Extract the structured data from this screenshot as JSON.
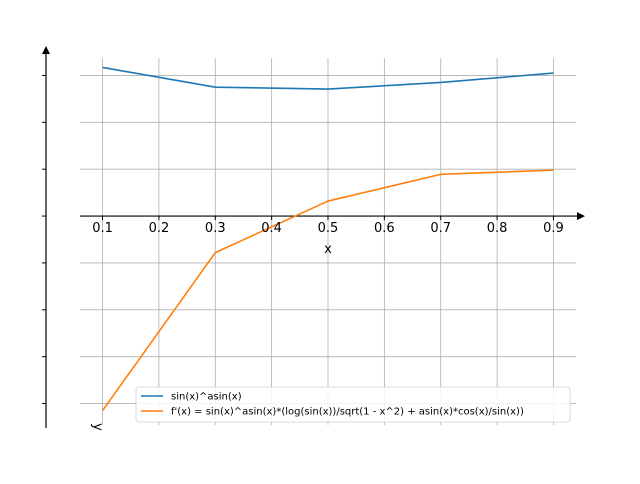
{
  "chart_data": {
    "type": "line",
    "title": "",
    "xlabel": "x",
    "ylabel": "y",
    "grid": true,
    "legend_position": "lower-right",
    "xlim": [
      0.06,
      0.94
    ],
    "ylim": [
      -4.5,
      3.5
    ],
    "x": [
      0.1,
      0.3,
      0.5,
      0.7,
      0.9
    ],
    "x_ticks": [
      0.1,
      0.2,
      0.3,
      0.4,
      0.5,
      0.6,
      0.7,
      0.8,
      0.9
    ],
    "x_tick_labels": [
      "0.1",
      "0.2",
      "0.3",
      "0.4",
      "0.5",
      "0.6",
      "0.7",
      "0.8",
      "0.9"
    ],
    "y_gridlines": [
      -4,
      -3,
      -2,
      -1,
      0,
      1,
      2,
      3
    ],
    "series": [
      {
        "name": "sin(x)^asin(x)",
        "color": "#1f77b4",
        "values": [
          3.17,
          2.75,
          2.71,
          2.85,
          3.05
        ]
      },
      {
        "name": "f'(x) = sin(x)^asin(x)*(log(sin(x))/sqrt(1 - x^2) + asin(x)*cos(x)/sin(x))",
        "color": "#ff7f0e",
        "values": [
          -4.15,
          -0.78,
          0.32,
          0.89,
          0.98
        ]
      }
    ]
  }
}
